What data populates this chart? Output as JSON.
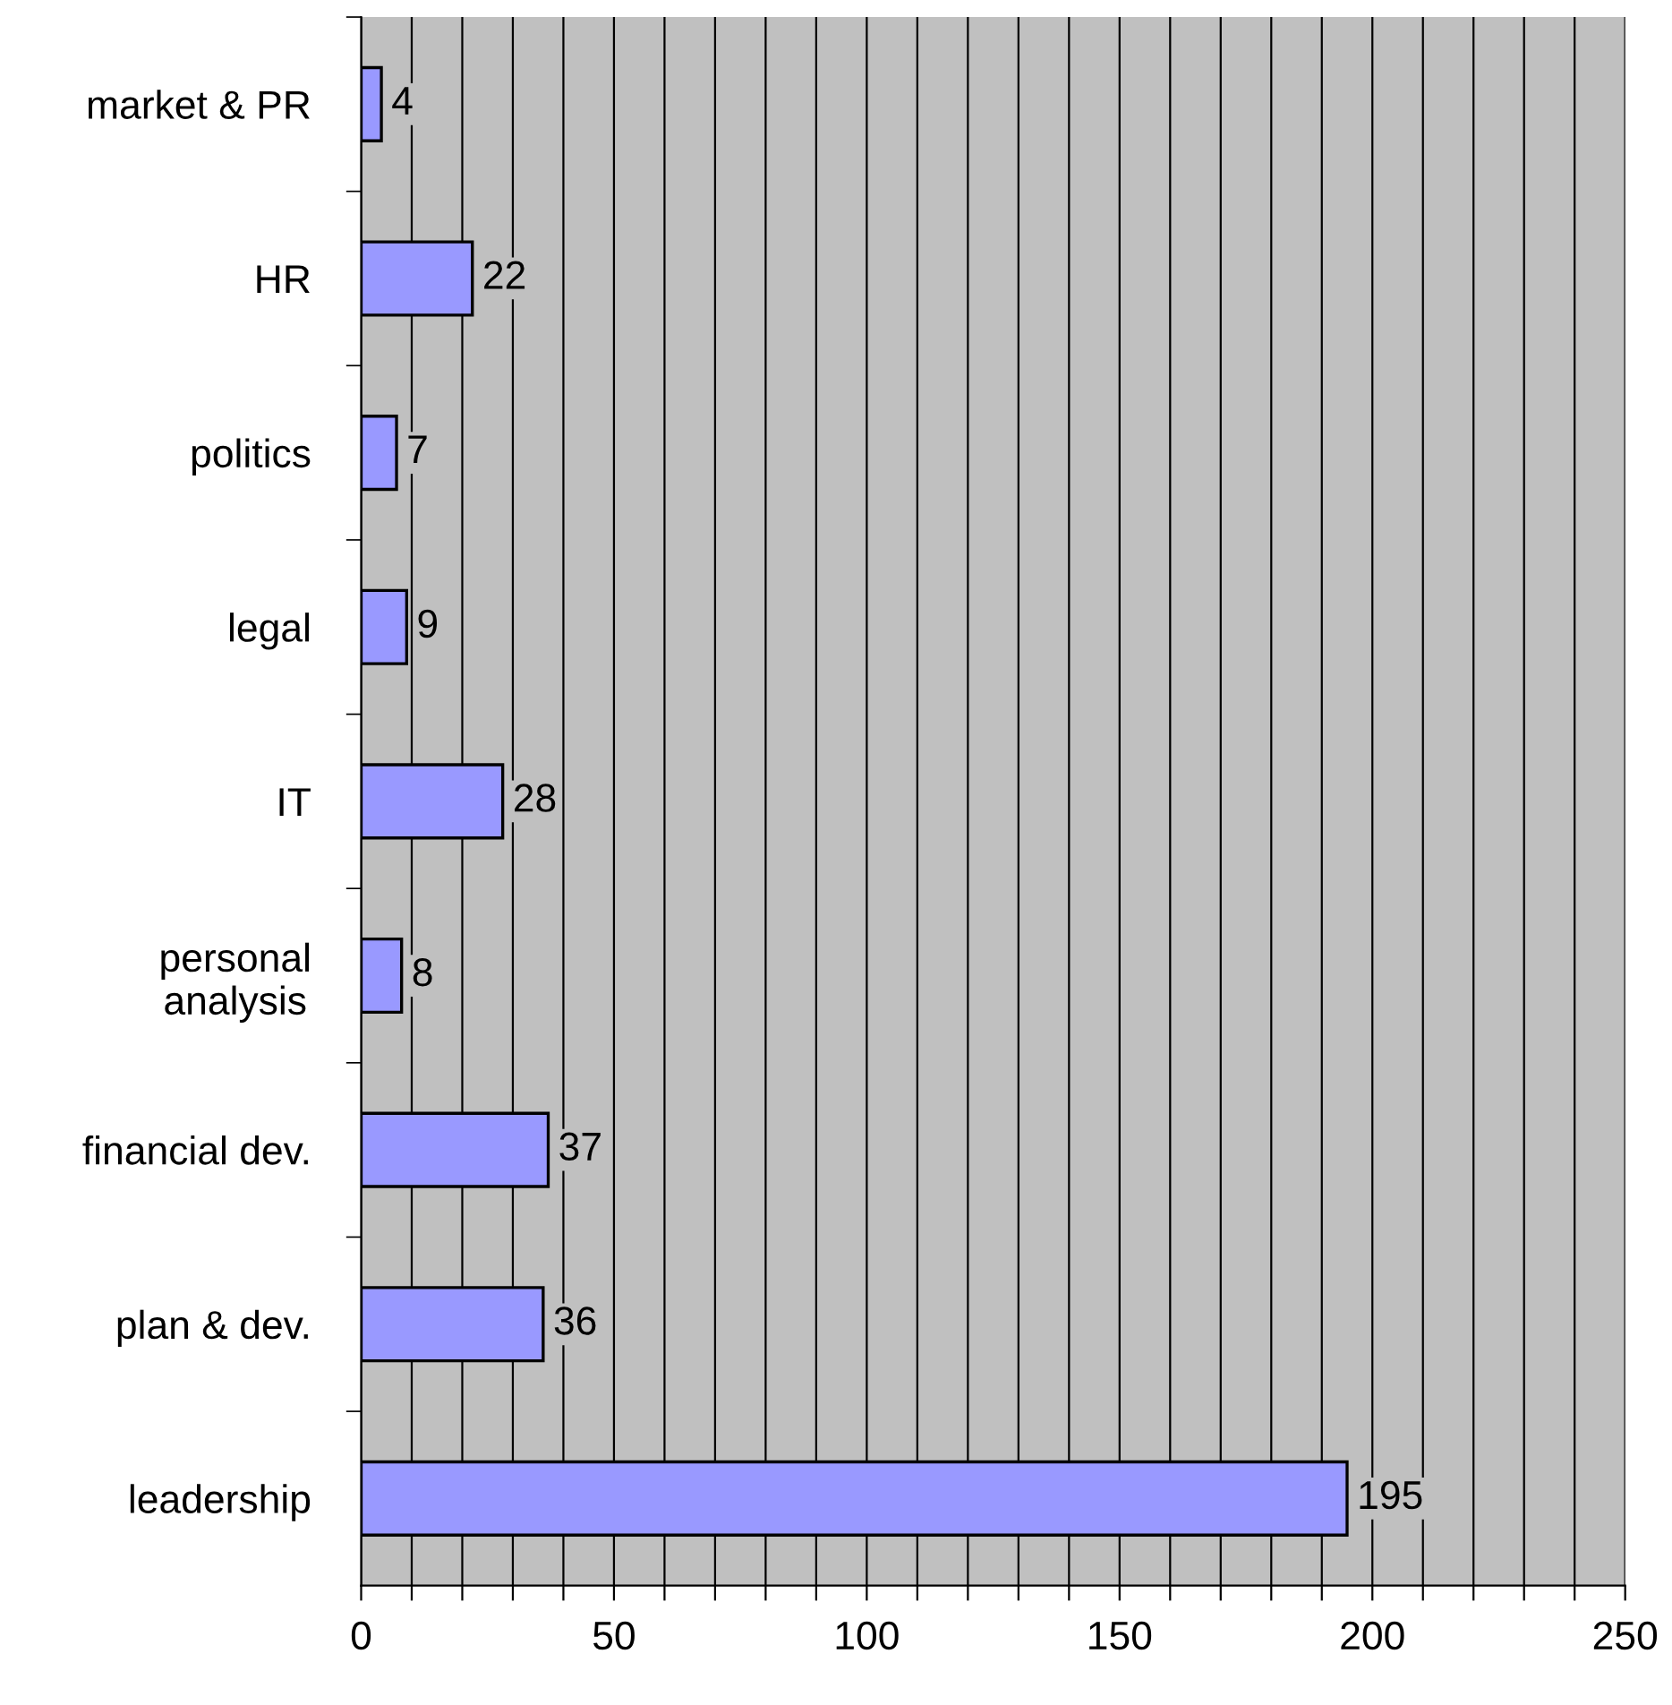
{
  "chart_data": {
    "type": "bar",
    "orientation": "horizontal",
    "categories": [
      "market & PR",
      "HR",
      "politics",
      "legal",
      "IT",
      "personal\nanalysis",
      "financial dev.",
      "plan & dev.",
      "leadership"
    ],
    "values": [
      4,
      22,
      7,
      9,
      28,
      8,
      37,
      36,
      195
    ],
    "color": "#9999ff",
    "xlim": [
      0,
      250
    ],
    "xticks": [
      0,
      {
        "value": 10,
        "label": null
      },
      {
        "value": 20,
        "label": null
      },
      {
        "value": 30,
        "label": null
      },
      {
        "value": 40,
        "label": null
      },
      50,
      {
        "value": 60,
        "label": null
      },
      {
        "value": 70,
        "label": null
      },
      {
        "value": 80,
        "label": null
      },
      {
        "value": 90,
        "label": null
      },
      100,
      {
        "value": 110,
        "label": null
      },
      {
        "value": 120,
        "label": null
      },
      {
        "value": 130,
        "label": null
      },
      {
        "value": 140,
        "label": null
      },
      150,
      {
        "value": 160,
        "label": null
      },
      {
        "value": 170,
        "label": null
      },
      {
        "value": 180,
        "label": null
      },
      {
        "value": 190,
        "label": null
      },
      200,
      {
        "value": 210,
        "label": null
      },
      {
        "value": 220,
        "label": null
      },
      {
        "value": 230,
        "label": null
      },
      {
        "value": 240,
        "label": null
      },
      250
    ],
    "grid": "x",
    "data_labels": true
  }
}
